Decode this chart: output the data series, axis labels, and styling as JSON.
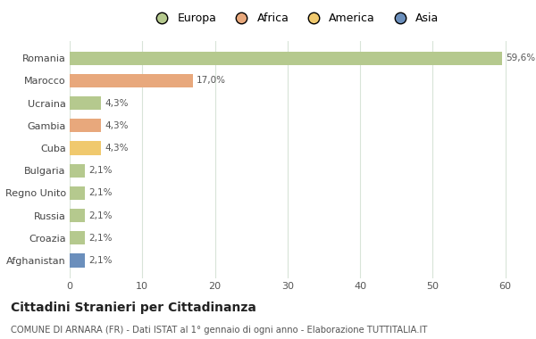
{
  "countries": [
    "Romania",
    "Marocco",
    "Ucraina",
    "Gambia",
    "Cuba",
    "Bulgaria",
    "Regno Unito",
    "Russia",
    "Croazia",
    "Afghanistan"
  ],
  "values": [
    59.6,
    17.0,
    4.3,
    4.3,
    4.3,
    2.1,
    2.1,
    2.1,
    2.1,
    2.1
  ],
  "labels": [
    "59,6%",
    "17,0%",
    "4,3%",
    "4,3%",
    "4,3%",
    "2,1%",
    "2,1%",
    "2,1%",
    "2,1%",
    "2,1%"
  ],
  "colors": [
    "#b5c98e",
    "#e8a87c",
    "#b5c98e",
    "#e8a87c",
    "#f0c96e",
    "#b5c98e",
    "#b5c98e",
    "#b5c98e",
    "#b5c98e",
    "#6b8fbc"
  ],
  "legend_labels": [
    "Europa",
    "Africa",
    "America",
    "Asia"
  ],
  "legend_colors": [
    "#b5c98e",
    "#e8a87c",
    "#f0c96e",
    "#6b8fbc"
  ],
  "xlim": [
    0,
    62
  ],
  "xticks": [
    0,
    10,
    20,
    30,
    40,
    50,
    60
  ],
  "title": "Cittadini Stranieri per Cittadinanza",
  "subtitle": "COMUNE DI ARNARA (FR) - Dati ISTAT al 1° gennaio di ogni anno - Elaborazione TUTTITALIA.IT",
  "bg_color": "#ffffff",
  "grid_color": "#d8e4d8",
  "bar_height": 0.6
}
